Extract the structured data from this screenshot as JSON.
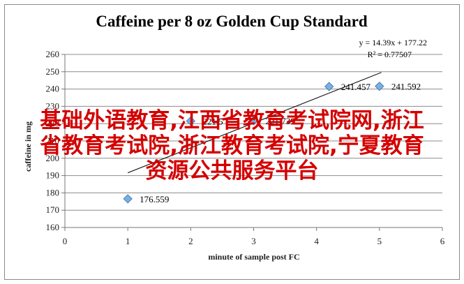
{
  "chart_data": {
    "type": "scatter",
    "title": "Caffeine per 8 oz Golden Cup Standard",
    "xlabel": "minute of sample post FC",
    "ylabel": "caffeine in mg",
    "xlim": [
      0,
      6
    ],
    "ylim": [
      160,
      260
    ],
    "x_ticks": [
      0,
      1,
      2,
      3,
      4,
      5,
      6
    ],
    "y_ticks": [
      160,
      170,
      180,
      190,
      200,
      210,
      220,
      230,
      240,
      250,
      260
    ],
    "grid": "horizontal",
    "marker_color": "#7ab0e0",
    "trendline_color": "#000000",
    "points": [
      {
        "x": 1,
        "y": 176.559,
        "label": "176.559"
      },
      {
        "x": 2,
        "y": 221.5,
        "label": "221.5"
      },
      {
        "x": 3,
        "y": 221.739,
        "label": "221.739"
      },
      {
        "x": 4.2,
        "y": 241.457,
        "label": "241.457"
      },
      {
        "x": 5,
        "y": 241.592,
        "label": "241.592"
      }
    ],
    "trendline": {
      "slope": 14.39,
      "intercept": 177.22,
      "x_range": [
        1,
        5.03
      ]
    },
    "equation_label": "y = 14.39x + 177.22",
    "r2_label": "R² = 0.77507"
  },
  "overlay": {
    "lines": [
      "基础外语教育,江西省教育考试院网,浙江",
      "省教育考试院,浙江教育考试院,宁夏教育",
      "资源公共服务平台"
    ],
    "color": "#d40000"
  }
}
